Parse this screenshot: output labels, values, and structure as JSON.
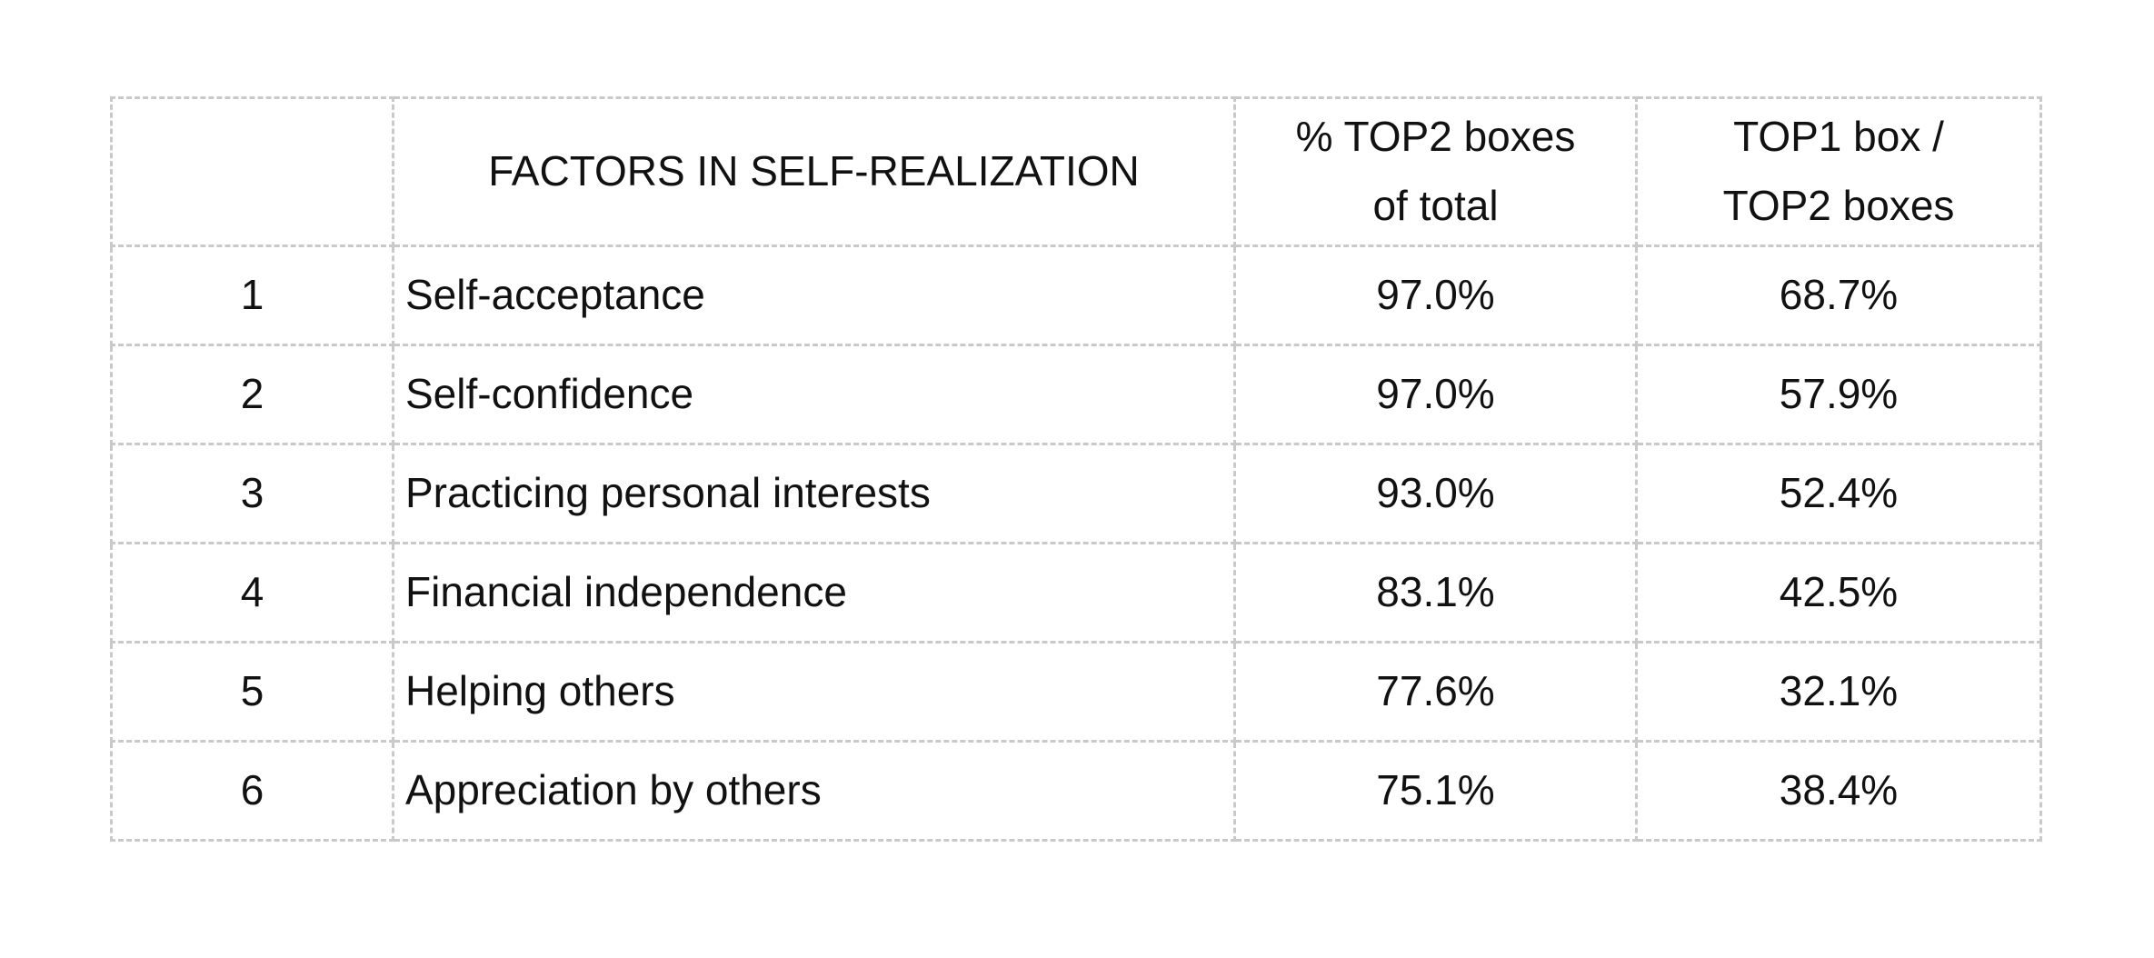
{
  "table": {
    "header": [
      {
        "lines": [
          "FACTORS IN SELF-REALIZATION"
        ]
      },
      {
        "lines": [
          "% TOP2 boxes",
          "of total"
        ]
      },
      {
        "lines": [
          "TOP1 box /",
          "TOP2 boxes"
        ]
      }
    ],
    "rows": [
      [
        "1",
        "Self-acceptance",
        "97.0%",
        "68.7%"
      ],
      [
        "2",
        "Self-confidence",
        "97.0%",
        "57.9%"
      ],
      [
        "3",
        "Practicing personal interests",
        "93.0%",
        "52.4%"
      ],
      [
        "4",
        "Financial independence",
        "83.1%",
        "42.5%"
      ],
      [
        "5",
        "Helping others",
        "77.6%",
        "32.1%"
      ],
      [
        "6",
        "Appreciation by others",
        "75.1%",
        "38.4%"
      ]
    ]
  }
}
